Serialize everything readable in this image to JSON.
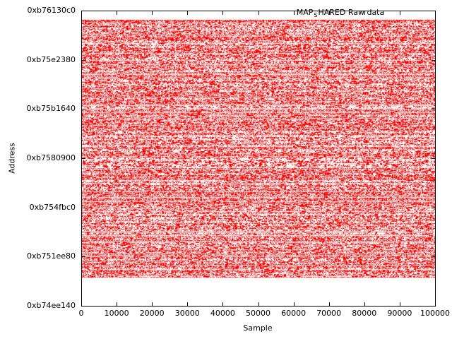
{
  "chart_data": {
    "type": "scatter",
    "title": "MAP_SHARED Raw data",
    "legend": {
      "position": "top-right",
      "prefix": "MAP",
      "subscript": "S",
      "suffix": "HARED Raw data"
    },
    "xlabel": "Sample",
    "ylabel": "Address",
    "xlim": [
      0,
      100000
    ],
    "x_ticks": [
      0,
      10000,
      20000,
      30000,
      40000,
      50000,
      60000,
      70000,
      80000,
      90000,
      100000
    ],
    "y_ticks": [
      "0xb74ee140",
      "0xb751ee80",
      "0xb754fbc0",
      "0xb7580900",
      "0xb75b1640",
      "0xb75e2380",
      "0xb76130c0"
    ],
    "y_tick_step": 200000,
    "grid": false,
    "background_color": "#ffffff",
    "axis_color": "#000000",
    "series": [
      {
        "name": "MAP_SHARED Raw data",
        "style": "dots",
        "color": "#ff0000",
        "x_range": [
          0,
          100000
        ],
        "address_range_est": [
          "0xb750b000",
          "0xb760a000"
        ],
        "band_frac_from_top": {
          "top": 0.031,
          "bottom": 0.902
        },
        "appearance": "dense uniform 1px red dot noise in horizontal dash rows filling full x range"
      }
    ]
  }
}
